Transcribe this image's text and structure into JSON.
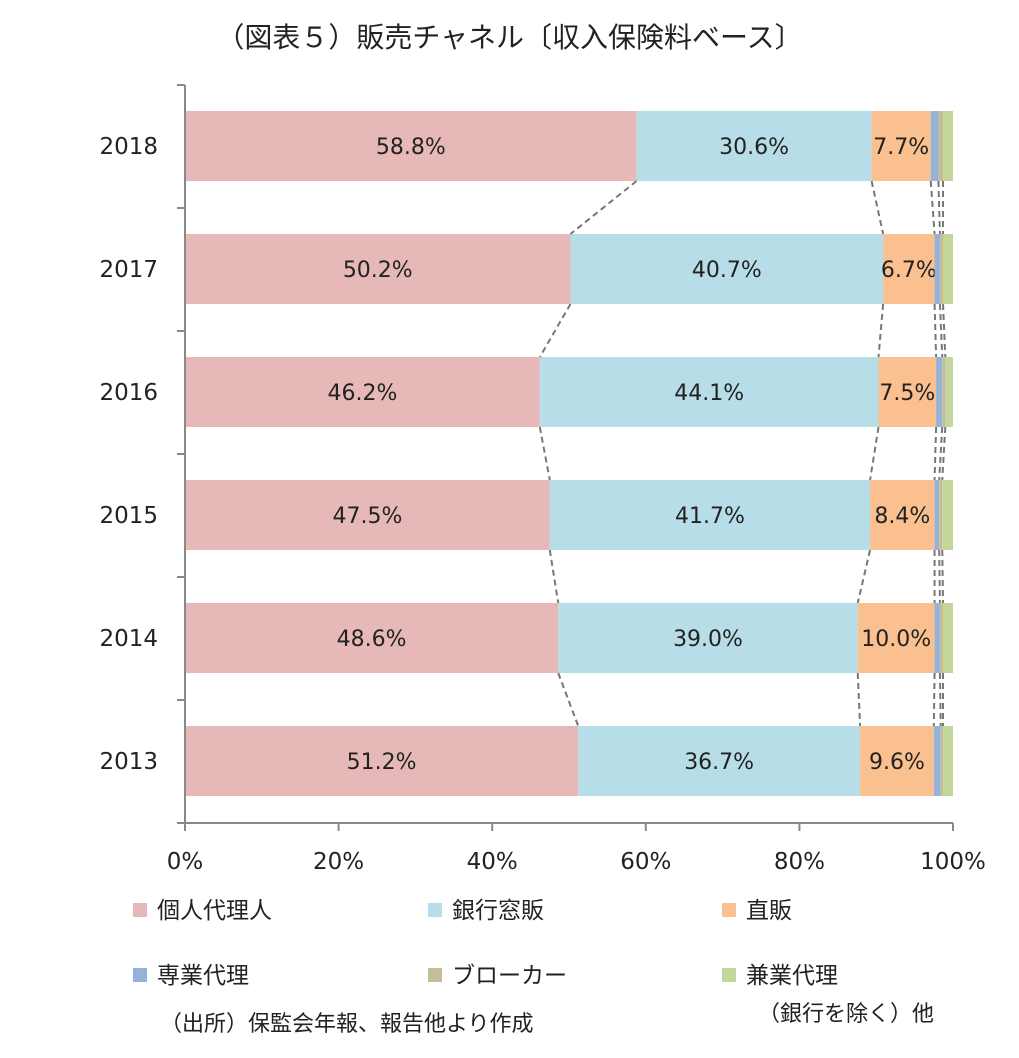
{
  "chart_data": {
    "type": "bar",
    "orientation": "horizontal",
    "stacked": "percent",
    "title": "（図表５）販売チャネル〔収入保険料ベース〕",
    "categories": [
      "2018",
      "2017",
      "2016",
      "2015",
      "2014",
      "2013"
    ],
    "series": [
      {
        "name": "個人代理人",
        "color": "#e6b9b8",
        "values": [
          58.8,
          50.2,
          46.2,
          47.5,
          48.6,
          51.2
        ],
        "labels": [
          "58.8%",
          "50.2%",
          "46.2%",
          "47.5%",
          "48.6%",
          "51.2%"
        ]
      },
      {
        "name": "銀行窓販",
        "color": "#b7dee8",
        "values": [
          30.6,
          40.7,
          44.1,
          41.7,
          39.0,
          36.7
        ],
        "labels": [
          "30.6%",
          "40.7%",
          "44.1%",
          "41.7%",
          "39.0%",
          "36.7%"
        ]
      },
      {
        "name": "直販",
        "color": "#fac090",
        "values": [
          7.7,
          6.7,
          7.5,
          8.4,
          10.0,
          9.6
        ],
        "labels": [
          "7.7%",
          "6.7%",
          "7.5%",
          "8.4%",
          "10.0%",
          "9.6%"
        ]
      },
      {
        "name": "専業代理",
        "color": "#95b3d7",
        "values": [
          1.0,
          0.7,
          0.8,
          0.6,
          0.7,
          0.9
        ],
        "labels": [
          "",
          "",
          "",
          "",
          "",
          ""
        ]
      },
      {
        "name": "ブローカー",
        "color": "#c4bd97",
        "values": [
          0.6,
          0.4,
          0.4,
          0.4,
          0.4,
          0.3
        ],
        "labels": [
          "",
          "",
          "",
          "",
          "",
          ""
        ]
      },
      {
        "name": "兼業代理",
        "color": "#c3d69b",
        "values": [
          1.3,
          1.3,
          1.0,
          1.4,
          1.3,
          1.3
        ],
        "labels": [
          "",
          "",
          "",
          "",
          "",
          ""
        ]
      }
    ],
    "xlim": [
      0,
      100
    ],
    "xticks": [
      "0%",
      "20%",
      "40%",
      "60%",
      "80%",
      "100%"
    ],
    "series_lines": true,
    "grid": false,
    "legend_position": "bottom"
  },
  "notes": {
    "source": "（出所）保監会年報、報告他より作成",
    "other_note": "（銀行を除く）他"
  }
}
